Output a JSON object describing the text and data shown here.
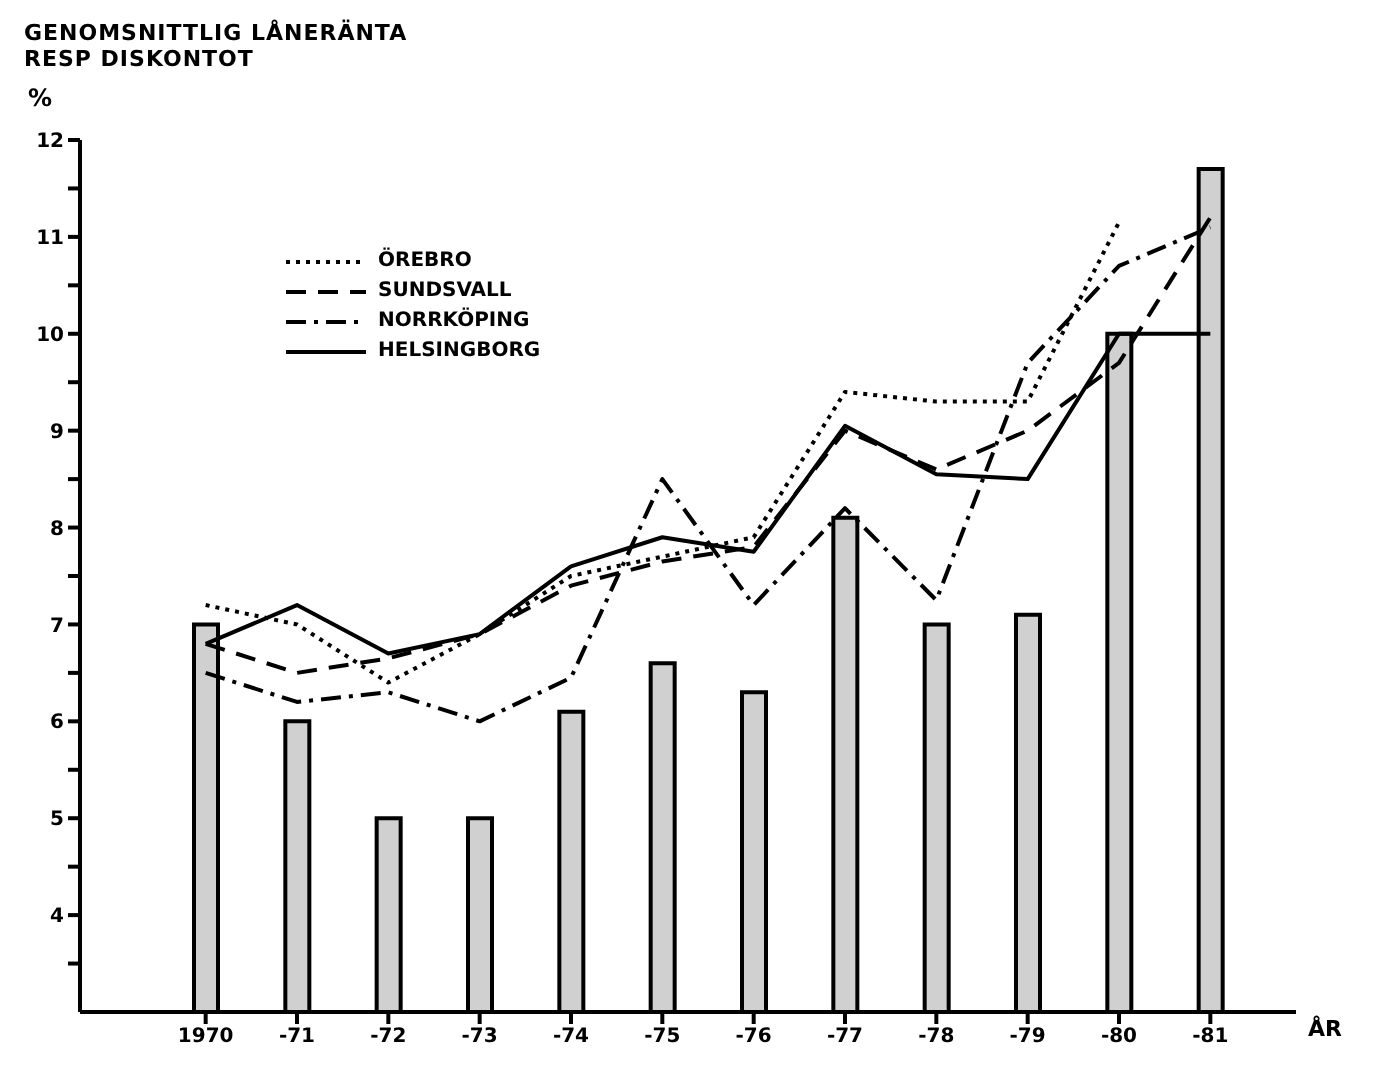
{
  "chart_data": {
    "type": "bar",
    "title": "GENOMSNITTLIG LÅNERÄNTA RESP DISKONTOT",
    "ylabel": "%",
    "xlabel": "ÅR",
    "categories": [
      "1970",
      "-71",
      "-72",
      "-73",
      "-74",
      "-75",
      "-76",
      "-77",
      "-78",
      "-79",
      "-80",
      "-81"
    ],
    "series": [
      {
        "color": "#d0d0d0",
        "values": [
          7.0,
          6.0,
          5.0,
          5.0,
          6.1,
          6.6,
          6.3,
          8.1,
          7.0,
          7.1,
          10.0,
          11.7
        ]
      },
      {
        "type": "line",
        "name": "ÖREBRO",
        "color": "#000000",
        "line_style": "dotted",
        "values": [
          7.2,
          7.0,
          6.4,
          6.9,
          7.5,
          7.7,
          7.9,
          9.4,
          9.3,
          9.3,
          11.15,
          null
        ]
      },
      {
        "type": "line",
        "name": "SUNDSVALL",
        "color": "#000000",
        "line_style": "dashed",
        "values": [
          6.8,
          6.5,
          6.65,
          6.9,
          7.4,
          7.65,
          7.8,
          9.0,
          8.6,
          9.0,
          9.7,
          11.2
        ]
      },
      {
        "type": "line",
        "name": "NORRKÖPING",
        "color": "#000000",
        "line_style": "dashdot",
        "values": [
          6.5,
          6.2,
          6.3,
          6.0,
          6.45,
          8.5,
          7.2,
          8.2,
          7.25,
          9.7,
          10.7,
          11.1
        ]
      },
      {
        "type": "line",
        "name": "HELSINGBORG",
        "color": "#000000",
        "line_style": "solid",
        "values": [
          6.8,
          7.2,
          6.7,
          6.9,
          7.6,
          7.9,
          7.75,
          9.05,
          8.55,
          8.5,
          10.0,
          10.0
        ]
      }
    ],
    "ylim": [
      3,
      12
    ],
    "yticks": [
      {
        "value": 3.5,
        "label": null
      },
      4,
      {
        "value": 4.5,
        "label": null
      },
      5,
      {
        "value": 5.5,
        "label": null
      },
      6,
      {
        "value": 6.5,
        "label": null
      },
      7,
      {
        "value": 7.5,
        "label": null
      },
      8,
      {
        "value": 8.5,
        "label": null
      },
      9,
      {
        "value": 9.5,
        "label": null
      },
      10,
      {
        "value": 10.5,
        "label": null
      },
      11,
      {
        "value": 11.5,
        "label": null
      },
      12
    ],
    "grid": false,
    "legend": "top left",
    "marker": "none"
  }
}
